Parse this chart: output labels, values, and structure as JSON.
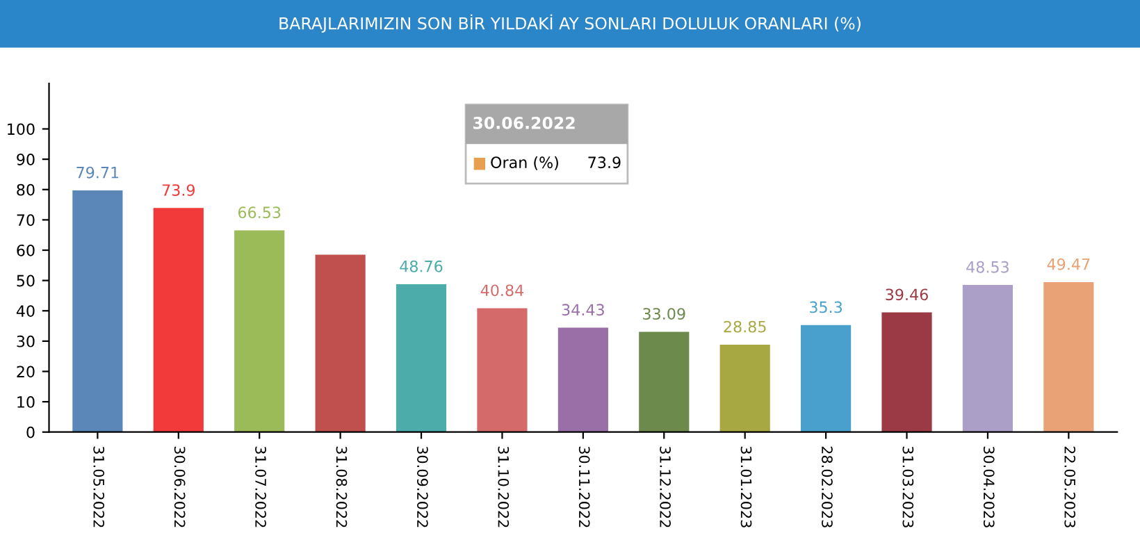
{
  "chart_data": {
    "type": "bar",
    "title": "BARAJLARIMIZIN SON BİR YILDAKİ AY SONLARI DOLULUK ORANLARI (%)",
    "categories": [
      "31.05.2022",
      "30.06.2022",
      "31.07.2022",
      "31.08.2022",
      "30.09.2022",
      "31.10.2022",
      "30.11.2022",
      "31.12.2022",
      "31.01.2023",
      "28.02.2023",
      "31.03.2023",
      "30.04.2023",
      "22.05.2023"
    ],
    "values": [
      79.71,
      73.9,
      66.53,
      58.5,
      48.76,
      40.84,
      34.43,
      33.09,
      28.85,
      35.3,
      39.46,
      48.53,
      49.47
    ],
    "value_labels": [
      "79.71",
      "73.9",
      "66.53",
      null,
      "48.76",
      "40.84",
      "34.43",
      "33.09",
      "28.85",
      "35.3",
      "39.46",
      "48.53",
      "49.47"
    ],
    "colors": [
      "#5b86b8",
      "#f23a3a",
      "#9bbb59",
      "#c0504d",
      "#4bacaa",
      "#d46a6a",
      "#9a6fa8",
      "#6b8a4b",
      "#a8a843",
      "#4aa0cc",
      "#9b3a45",
      "#ab9fc8",
      "#e8a276"
    ],
    "ylim": [
      0,
      115
    ],
    "yticks": [
      0,
      10,
      20,
      30,
      40,
      50,
      60,
      70,
      80,
      90,
      100
    ],
    "grid": false,
    "legend": false,
    "annotations": [
      "30.06.2022",
      "Oran (%)",
      "73.9"
    ]
  }
}
